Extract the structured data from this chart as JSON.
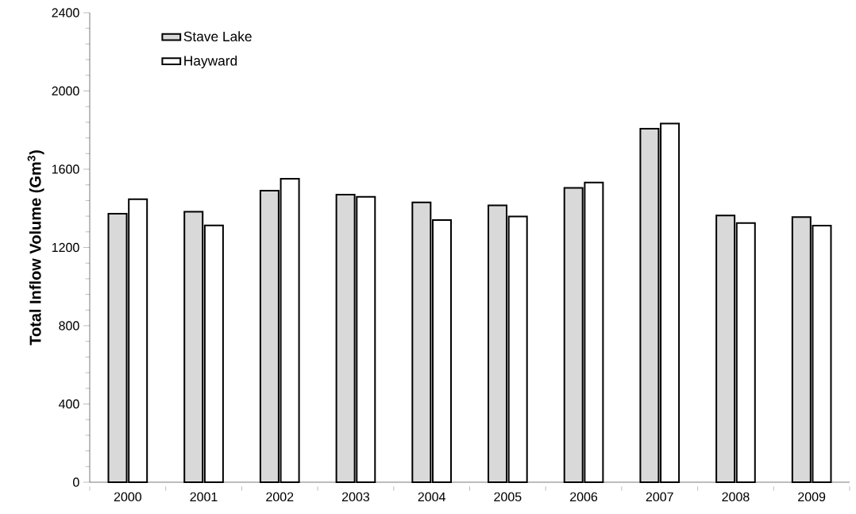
{
  "chart_data": {
    "type": "bar",
    "ylabel": "Total Inflow Volume (Gm$^{3}$)",
    "categories": [
      "2000",
      "2001",
      "2002",
      "2003",
      "2004",
      "2005",
      "2006",
      "2007",
      "2008",
      "2009"
    ],
    "series": [
      {
        "name": "Stave Lake",
        "color": "#d9d9d9",
        "values": [
          1373,
          1383,
          1490,
          1470,
          1430,
          1415,
          1505,
          1807,
          1363,
          1355
        ]
      },
      {
        "name": "Hayward",
        "color": "#ffffff",
        "values": [
          1447,
          1313,
          1551,
          1459,
          1340,
          1358,
          1532,
          1834,
          1325,
          1312
        ]
      }
    ],
    "ylim": [
      0,
      2400
    ],
    "yticks": [
      0,
      400,
      800,
      1200,
      1600,
      2000,
      2400
    ],
    "grid": false,
    "legend": "top left"
  }
}
